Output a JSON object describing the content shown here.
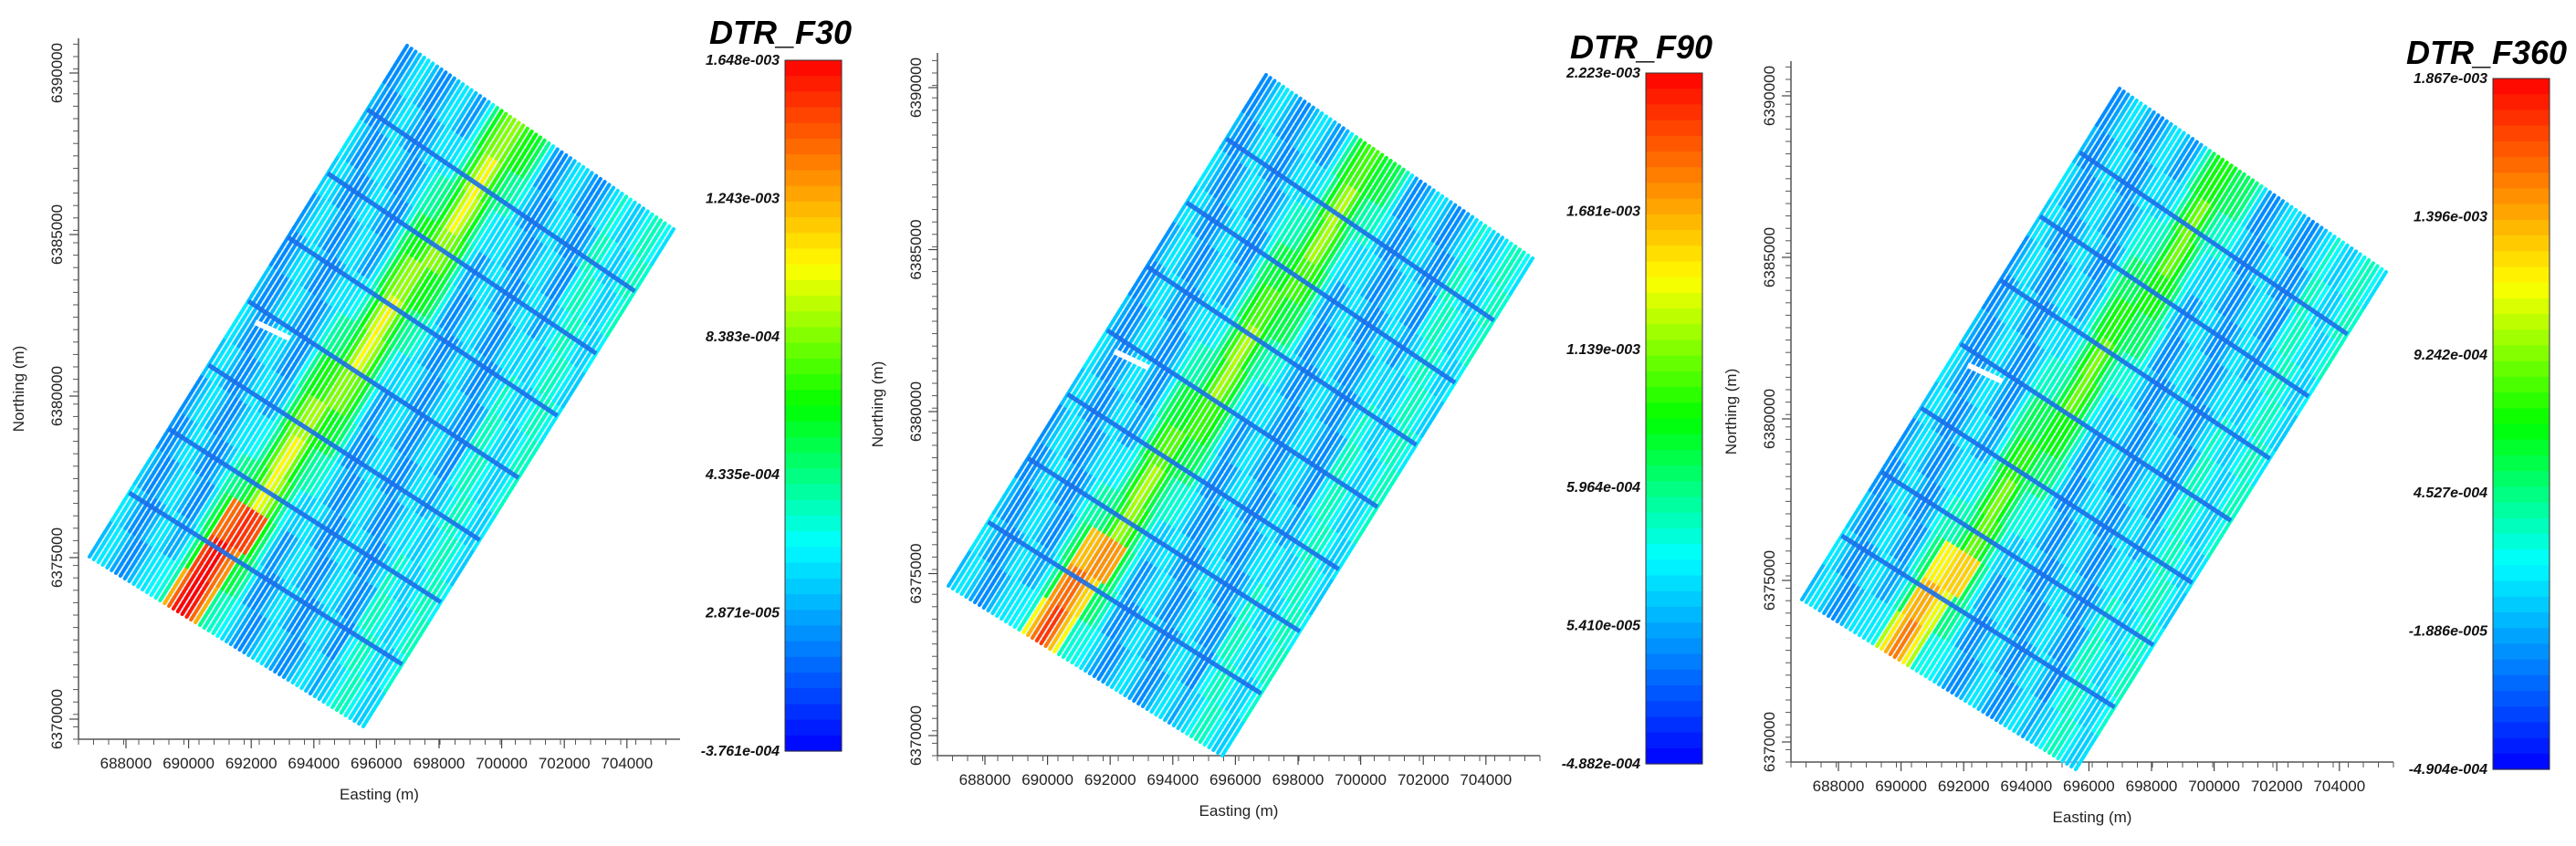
{
  "panels": [
    {
      "title": "DTR_F30",
      "xlabel": "Easting (m)",
      "ylabel": "Northing (m)",
      "x_ticks": [
        "688000",
        "690000",
        "692000",
        "694000",
        "696000",
        "698000",
        "700000",
        "702000",
        "704000"
      ],
      "y_ticks": [
        "6370000",
        "6375000",
        "6380000",
        "6385000",
        "6390000"
      ],
      "colorbar_labels": [
        "1.648e-003",
        "1.243e-003",
        "8.383e-004",
        "4.335e-004",
        "2.871e-005",
        "-3.761e-004"
      ],
      "anomaly_strength": 1.0
    },
    {
      "title": "DTR_F90",
      "xlabel": "Easting (m)",
      "ylabel": "Northing (m)",
      "x_ticks": [
        "688000",
        "690000",
        "692000",
        "694000",
        "696000",
        "698000",
        "700000",
        "702000",
        "704000"
      ],
      "y_ticks": [
        "6370000",
        "6375000",
        "6380000",
        "6385000",
        "6390000"
      ],
      "colorbar_labels": [
        "2.223e-003",
        "1.681e-003",
        "1.139e-003",
        "5.964e-004",
        "5.410e-005",
        "-4.882e-004"
      ],
      "anomaly_strength": 0.85
    },
    {
      "title": "DTR_F360",
      "xlabel": "Easting (m)",
      "ylabel": "Northing (m)",
      "x_ticks": [
        "688000",
        "690000",
        "692000",
        "694000",
        "696000",
        "698000",
        "700000",
        "702000",
        "704000"
      ],
      "y_ticks": [
        "6370000",
        "6375000",
        "6380000",
        "6385000",
        "6390000"
      ],
      "colorbar_labels": [
        "1.867e-003",
        "1.396e-003",
        "9.242e-004",
        "4.527e-004",
        "-1.886e-005",
        "-4.904e-004"
      ],
      "anomaly_strength": 0.75
    }
  ],
  "colormap": [
    "#0000ff",
    "#0055ff",
    "#00aaff",
    "#00ffff",
    "#00ff80",
    "#00ff00",
    "#80ff00",
    "#ffff00",
    "#ffaa00",
    "#ff5500",
    "#ff0000"
  ]
}
